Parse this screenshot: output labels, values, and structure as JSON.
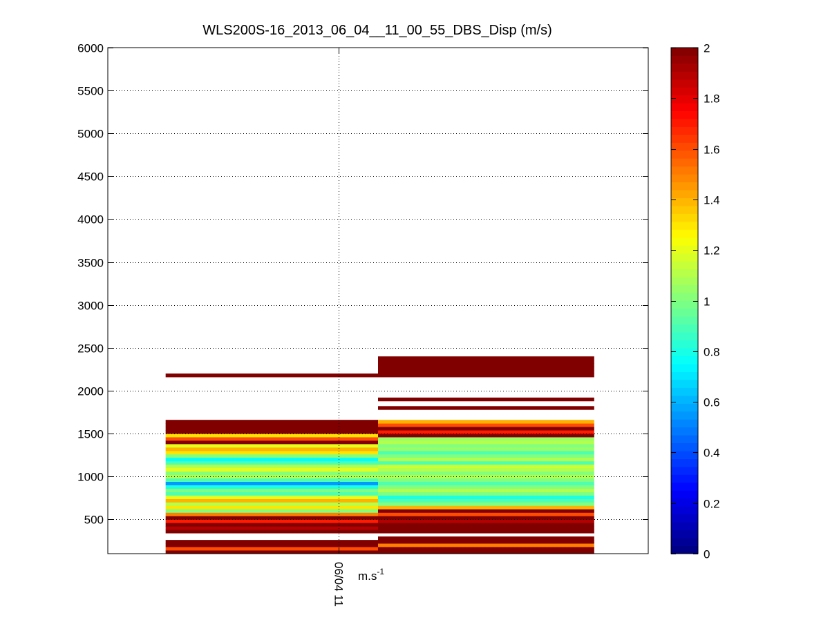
{
  "chart_data": {
    "type": "heatmap",
    "title": "WLS200S-16_2013_06_04__11_00_55_DBS_Disp (m/s)",
    "xlabel": "m.s",
    "xlabel_superscript": "-1",
    "ylabel": "",
    "x_tick_labels": [
      "06/04 11"
    ],
    "y_ticks": [
      500,
      1000,
      1500,
      2000,
      2500,
      3000,
      3500,
      4000,
      4500,
      5000,
      5500,
      6000
    ],
    "ylim": [
      100,
      6000
    ],
    "grid": true,
    "colormap": "jet",
    "colorbar": {
      "range": [
        0,
        2
      ],
      "ticks": [
        0,
        0.2,
        0.4,
        0.6,
        0.8,
        1,
        1.2,
        1.4,
        1.6,
        1.8,
        2
      ]
    },
    "bin_height_m": 40,
    "columns": [
      {
        "x_range": [
          0.107,
          0.5
        ],
        "cells": [
          [
            100,
            2.0
          ],
          [
            140,
            1.6
          ],
          [
            180,
            2.0
          ],
          [
            220,
            2.0
          ],
          [
            340,
            2.0
          ],
          [
            380,
            1.9
          ],
          [
            420,
            2.0
          ],
          [
            460,
            1.7
          ],
          [
            500,
            2.0
          ],
          [
            540,
            1.5
          ],
          [
            580,
            1.0
          ],
          [
            620,
            1.3
          ],
          [
            660,
            1.1
          ],
          [
            700,
            1.4
          ],
          [
            740,
            1.2
          ],
          [
            780,
            0.9
          ],
          [
            820,
            1.0
          ],
          [
            860,
            0.8
          ],
          [
            900,
            0.55
          ],
          [
            940,
            0.9
          ],
          [
            980,
            1.1
          ],
          [
            1020,
            1.0
          ],
          [
            1060,
            1.2
          ],
          [
            1100,
            1.1
          ],
          [
            1140,
            0.9
          ],
          [
            1180,
            0.75
          ],
          [
            1220,
            1.0
          ],
          [
            1260,
            1.3
          ],
          [
            1300,
            1.4
          ],
          [
            1340,
            1.2
          ],
          [
            1380,
            2.0
          ],
          [
            1420,
            1.6
          ],
          [
            1460,
            1.3
          ],
          [
            1500,
            2.0
          ],
          [
            1540,
            2.0
          ],
          [
            1580,
            2.0
          ],
          [
            1620,
            2.0
          ],
          [
            2160,
            2.0
          ]
        ]
      },
      {
        "x_range": [
          0.5,
          0.9
        ],
        "cells": [
          [
            100,
            2.0
          ],
          [
            140,
            2.0
          ],
          [
            180,
            1.5
          ],
          [
            220,
            2.0
          ],
          [
            260,
            2.0
          ],
          [
            340,
            2.0
          ],
          [
            380,
            2.0
          ],
          [
            420,
            2.0
          ],
          [
            460,
            1.9
          ],
          [
            500,
            2.0
          ],
          [
            540,
            1.6
          ],
          [
            580,
            2.0
          ],
          [
            620,
            1.4
          ],
          [
            660,
            1.0
          ],
          [
            700,
            0.9
          ],
          [
            740,
            0.8
          ],
          [
            780,
            1.0
          ],
          [
            820,
            1.1
          ],
          [
            860,
            1.0
          ],
          [
            900,
            0.9
          ],
          [
            940,
            1.0
          ],
          [
            980,
            1.1
          ],
          [
            1020,
            1.0
          ],
          [
            1060,
            1.1
          ],
          [
            1100,
            1.15
          ],
          [
            1140,
            0.9
          ],
          [
            1180,
            1.1
          ],
          [
            1220,
            1.0
          ],
          [
            1260,
            0.9
          ],
          [
            1300,
            1.05
          ],
          [
            1340,
            1.0
          ],
          [
            1380,
            1.1
          ],
          [
            1420,
            1.05
          ],
          [
            1460,
            2.0
          ],
          [
            1500,
            1.7
          ],
          [
            1540,
            2.0
          ],
          [
            1580,
            1.6
          ],
          [
            1620,
            1.4
          ],
          [
            1780,
            2.0
          ],
          [
            1880,
            2.0
          ],
          [
            2160,
            2.0
          ],
          [
            2200,
            2.0
          ],
          [
            2240,
            2.0
          ],
          [
            2280,
            2.0
          ],
          [
            2320,
            2.0
          ],
          [
            2360,
            2.0
          ]
        ]
      }
    ]
  }
}
